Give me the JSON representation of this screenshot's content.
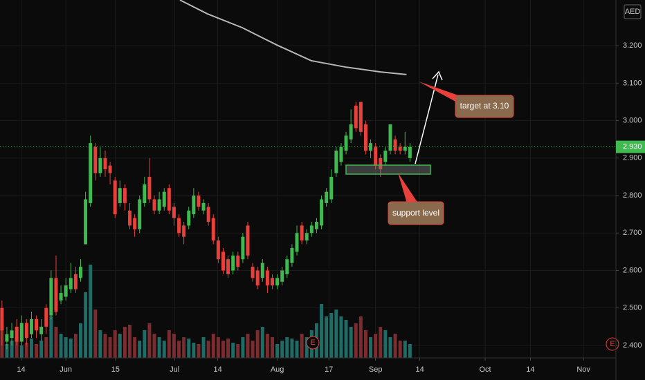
{
  "chart_data": {
    "type": "candlestick",
    "currency": "AED",
    "x": [
      0,
      1,
      2,
      3,
      4,
      5,
      6,
      7,
      8,
      9,
      10,
      11,
      12,
      13,
      14,
      15,
      16,
      17,
      18,
      19,
      20,
      21,
      22,
      23,
      24,
      25,
      26,
      27,
      28,
      29,
      30,
      31,
      32,
      33,
      34,
      35,
      36,
      37,
      38,
      39,
      40,
      41,
      42,
      43,
      44,
      45,
      46,
      47,
      48,
      49,
      50,
      51,
      52,
      53,
      54,
      55,
      56,
      57,
      58,
      59,
      60,
      61,
      62,
      63,
      64,
      65,
      66,
      67,
      68,
      69,
      70,
      71,
      72,
      73,
      74,
      75,
      76,
      77,
      78,
      79,
      80,
      81,
      82,
      83
    ],
    "open": [
      2.5,
      2.41,
      2.42,
      2.45,
      2.41,
      2.46,
      2.43,
      2.47,
      2.43,
      2.5,
      2.48,
      2.58,
      2.52,
      2.53,
      2.55,
      2.59,
      2.58,
      2.67,
      2.78,
      2.93,
      2.86,
      2.9,
      2.88,
      2.84,
      2.78,
      2.82,
      2.76,
      2.74,
      2.71,
      2.78,
      2.85,
      2.79,
      2.76,
      2.77,
      2.82,
      2.77,
      2.74,
      2.72,
      2.72,
      2.75,
      2.8,
      2.76,
      2.77,
      2.74,
      2.68,
      2.65,
      2.63,
      2.6,
      2.64,
      2.63,
      2.72,
      2.61,
      2.6,
      2.58,
      2.6,
      2.58,
      2.56,
      2.57,
      2.59,
      2.62,
      2.65,
      2.72,
      2.68,
      2.7,
      2.71,
      2.72,
      2.78,
      2.79,
      2.86,
      2.89,
      2.92,
      2.95,
      3.04,
      3.05,
      2.99,
      2.92,
      2.93,
      2.9,
      2.89,
      2.92,
      2.95,
      2.93,
      2.92,
      2.9
    ],
    "high": [
      2.52,
      2.45,
      2.46,
      2.47,
      2.48,
      2.47,
      2.49,
      2.48,
      2.47,
      2.51,
      2.6,
      2.64,
      2.56,
      2.58,
      2.62,
      2.61,
      2.63,
      2.81,
      2.96,
      2.94,
      2.93,
      2.92,
      2.89,
      2.85,
      2.84,
      2.83,
      2.78,
      2.75,
      2.8,
      2.85,
      2.9,
      2.8,
      2.81,
      2.82,
      2.83,
      2.78,
      2.75,
      2.73,
      2.77,
      2.82,
      2.81,
      2.79,
      2.78,
      2.75,
      2.69,
      2.66,
      2.64,
      2.65,
      2.65,
      2.7,
      2.73,
      2.62,
      2.61,
      2.63,
      2.61,
      2.59,
      2.59,
      2.61,
      2.64,
      2.67,
      2.72,
      2.73,
      2.71,
      2.73,
      2.74,
      2.8,
      2.82,
      2.87,
      2.93,
      2.94,
      2.97,
      3.03,
      3.05,
      3.05,
      3.0,
      2.95,
      2.94,
      2.91,
      2.93,
      2.99,
      2.96,
      2.94,
      2.97,
      2.94
    ],
    "low": [
      2.4,
      2.39,
      2.4,
      2.4,
      2.4,
      2.4,
      2.42,
      2.42,
      2.41,
      2.43,
      2.47,
      2.48,
      2.51,
      2.52,
      2.54,
      2.54,
      2.57,
      2.67,
      2.77,
      2.84,
      2.85,
      2.85,
      2.83,
      2.74,
      2.77,
      2.76,
      2.71,
      2.69,
      2.7,
      2.77,
      2.78,
      2.75,
      2.75,
      2.76,
      2.75,
      2.72,
      2.69,
      2.67,
      2.71,
      2.74,
      2.76,
      2.75,
      2.72,
      2.67,
      2.62,
      2.59,
      2.58,
      2.59,
      2.6,
      2.62,
      2.63,
      2.57,
      2.55,
      2.57,
      2.54,
      2.55,
      2.55,
      2.56,
      2.58,
      2.61,
      2.64,
      2.67,
      2.67,
      2.69,
      2.7,
      2.71,
      2.77,
      2.78,
      2.85,
      2.88,
      2.91,
      2.94,
      2.97,
      2.96,
      2.91,
      2.9,
      2.87,
      2.85,
      2.88,
      2.91,
      2.91,
      2.91,
      2.91,
      2.89
    ],
    "close": [
      2.44,
      2.43,
      2.44,
      2.41,
      2.46,
      2.42,
      2.47,
      2.44,
      2.45,
      2.45,
      2.58,
      2.49,
      2.54,
      2.56,
      2.58,
      2.55,
      2.61,
      2.79,
      2.94,
      2.86,
      2.9,
      2.87,
      2.86,
      2.75,
      2.82,
      2.78,
      2.72,
      2.71,
      2.79,
      2.83,
      2.79,
      2.76,
      2.79,
      2.81,
      2.76,
      2.74,
      2.7,
      2.69,
      2.76,
      2.8,
      2.77,
      2.78,
      2.73,
      2.68,
      2.63,
      2.6,
      2.59,
      2.64,
      2.61,
      2.69,
      2.64,
      2.58,
      2.56,
      2.62,
      2.56,
      2.56,
      2.58,
      2.6,
      2.63,
      2.66,
      2.7,
      2.68,
      2.7,
      2.72,
      2.73,
      2.79,
      2.81,
      2.85,
      2.92,
      2.93,
      2.96,
      2.99,
      2.98,
      2.97,
      2.92,
      2.94,
      2.88,
      2.87,
      2.92,
      2.99,
      2.92,
      2.92,
      2.93,
      2.93
    ],
    "volume": [
      55,
      20,
      25,
      30,
      18,
      22,
      28,
      20,
      25,
      30,
      60,
      45,
      35,
      30,
      28,
      35,
      50,
      95,
      135,
      70,
      40,
      35,
      30,
      40,
      35,
      45,
      48,
      30,
      25,
      40,
      50,
      35,
      30,
      25,
      40,
      35,
      25,
      30,
      28,
      22,
      20,
      30,
      25,
      35,
      30,
      25,
      28,
      22,
      20,
      30,
      35,
      25,
      40,
      45,
      35,
      30,
      20,
      25,
      30,
      28,
      25,
      35,
      30,
      40,
      50,
      78,
      60,
      65,
      70,
      60,
      55,
      45,
      50,
      60,
      40,
      30,
      35,
      45,
      40,
      30,
      35,
      25,
      25,
      20
    ],
    "moving_average": {
      "x": [
        36.2,
        41.8,
        48.9,
        55.9,
        62.9,
        69.9,
        77,
        82.3
      ],
      "values": [
        3.322,
        3.285,
        3.248,
        3.202,
        3.16,
        3.143,
        3.13,
        3.123
      ]
    },
    "up_color": "#3fb950",
    "down_color": "#e8403a",
    "up_volume_color": "#1f6b66",
    "down_volume_color": "#7a2c2f",
    "ma_color": "#b8b8b8",
    "xlim": [
      -0.4,
      124.9
    ],
    "ylim": [
      2.363,
      3.322
    ],
    "xticks": [
      {
        "value": 3.9,
        "label": "14"
      },
      {
        "value": 13,
        "label": "Jun"
      },
      {
        "value": 23.1,
        "label": "15"
      },
      {
        "value": 35.1,
        "label": "Jul"
      },
      {
        "value": 43.9,
        "label": "14"
      },
      {
        "value": 56,
        "label": "Aug"
      },
      {
        "value": 66.5,
        "label": "17"
      },
      {
        "value": 76,
        "label": "Sep"
      },
      {
        "value": 85,
        "label": "14"
      },
      {
        "value": 98.3,
        "label": "Oct"
      },
      {
        "value": 107.5,
        "label": "14"
      },
      {
        "value": 118.3,
        "label": "Nov"
      }
    ],
    "yticks": [
      {
        "value": 2.4,
        "label": "2.400"
      },
      {
        "value": 2.5,
        "label": "2.500"
      },
      {
        "value": 2.6,
        "label": "2.600"
      },
      {
        "value": 2.7,
        "label": "2.700"
      },
      {
        "value": 2.8,
        "label": "2.800"
      },
      {
        "value": 2.9,
        "label": "2.900"
      },
      {
        "value": 3.0,
        "label": "3.000"
      },
      {
        "value": 3.1,
        "label": "3.100"
      },
      {
        "value": 3.2,
        "label": "3.200"
      }
    ],
    "last_price": {
      "value": 2.93,
      "label": "2.930"
    },
    "grid": true,
    "annotations": [
      "target at 3.10",
      "support level"
    ],
    "earnings_markers": [
      "E",
      "E"
    ]
  }
}
